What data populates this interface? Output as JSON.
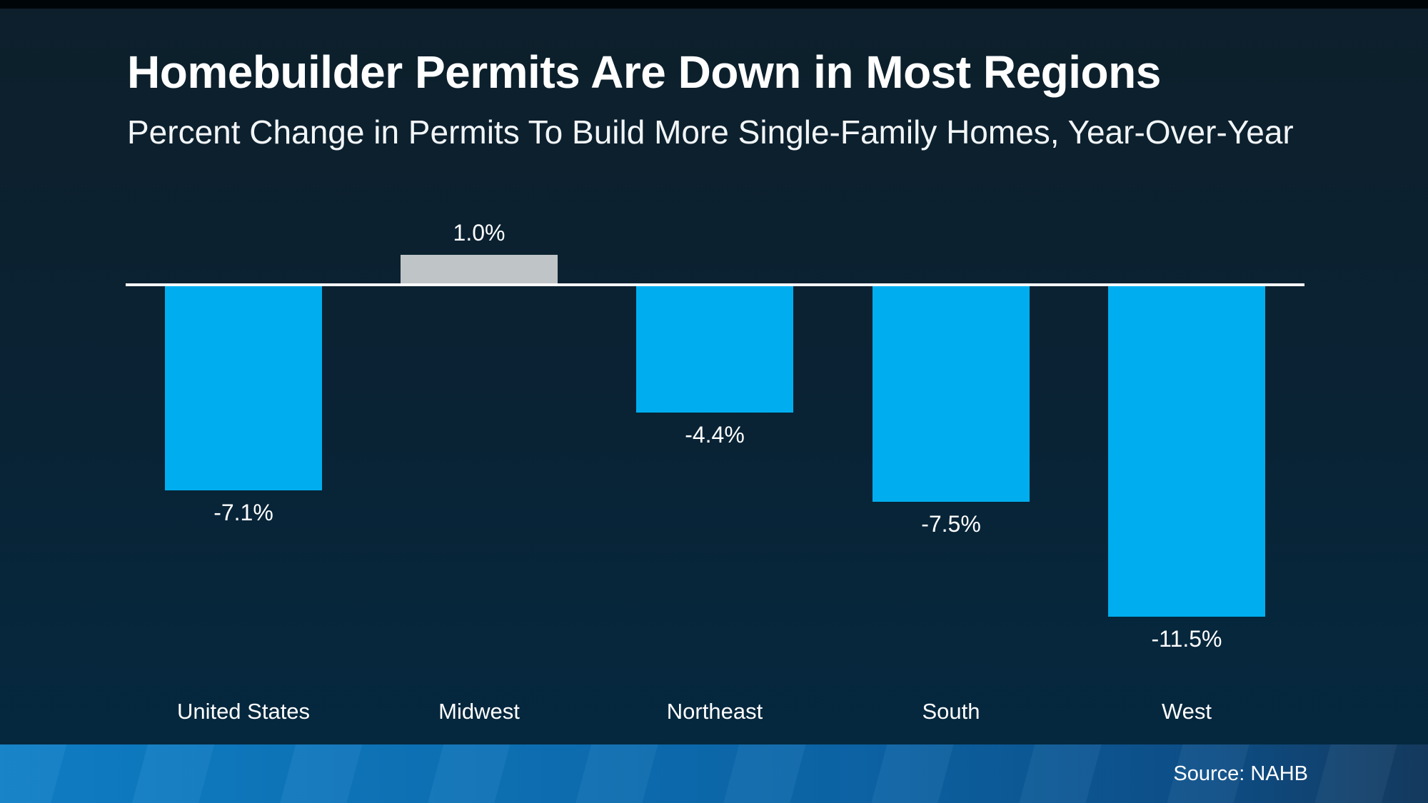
{
  "page": {
    "top_strip_color": "#000608",
    "background_top": "#0d1f2b",
    "background_bottom": "#042840"
  },
  "header": {
    "title": "Homebuilder Permits Are Down in Most Regions",
    "subtitle": "Percent Change in Permits To Build More Single-Family Homes, Year-Over-Year"
  },
  "chart_data": {
    "type": "bar",
    "title": "Homebuilder Permits Are Down in Most Regions",
    "subtitle": "Percent Change in Permits To Build More Single-Family Homes, Year-Over-Year",
    "categories": [
      "United States",
      "Midwest",
      "Northeast",
      "South",
      "West"
    ],
    "values": [
      -7.1,
      1.0,
      -4.4,
      -7.5,
      -11.5
    ],
    "value_labels": [
      "-7.1%",
      "1.0%",
      "-4.4%",
      "-7.5%",
      "-11.5%"
    ],
    "unit": "percent",
    "bar_colors": {
      "negative": "#00AEEF",
      "positive": "#BFC4C7"
    },
    "baseline_color": "#FFFFFF",
    "value_label_color": "#FFFFFF",
    "category_label_color": "#FFFFFF",
    "ylim": [
      -12,
      2
    ],
    "grid": false,
    "legend": false,
    "value_label_position": "outside-end"
  },
  "footer": {
    "source_label": "Source: NAHB",
    "text_color": "#FFFFFF",
    "gradient": [
      "#0F7EC6",
      "#0C64A6",
      "#0D4E87",
      "#143A5F"
    ]
  }
}
